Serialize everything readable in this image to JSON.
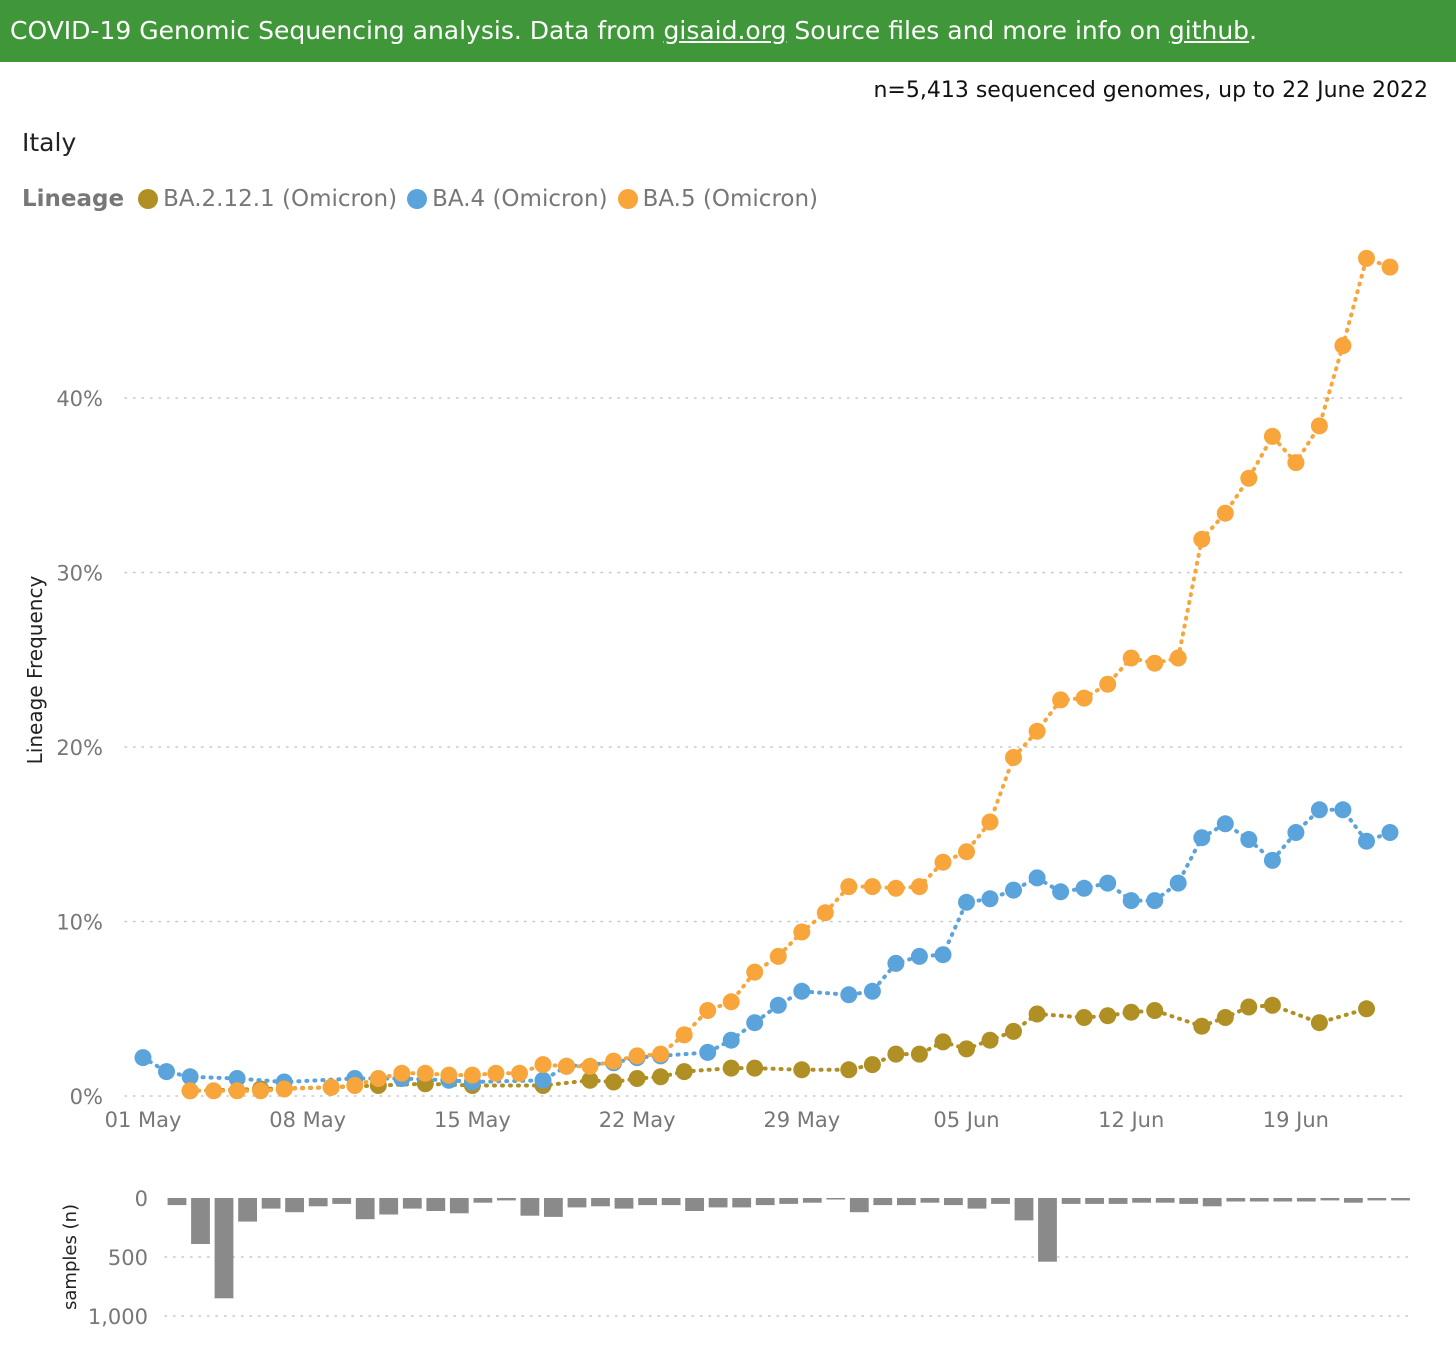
{
  "header": {
    "text_before": "COVID-19 Genomic Sequencing analysis. Data from ",
    "link1": "gisaid.org",
    "text_middle": " Source files and more info on ",
    "link2": "github",
    "text_after": "."
  },
  "subtitle": "n=5,413 sequenced genomes, up to 22 June 2022",
  "country": "Italy",
  "legend_title": "Lineage",
  "colors": {
    "ba2121": "#b08f24",
    "ba4": "#5ba3db",
    "ba5": "#f8a53b",
    "bars": "#8a8a8a",
    "header": "#3f973a"
  },
  "chart_data": [
    {
      "type": "line",
      "ylabel": "Lineage Frequency",
      "ylim": [
        0,
        48
      ],
      "yticks": [
        {
          "value": 0,
          "label": "0%"
        },
        {
          "value": 10,
          "label": "10%"
        },
        {
          "value": 20,
          "label": "20%"
        },
        {
          "value": 30,
          "label": "30%"
        },
        {
          "value": 40,
          "label": "40%"
        }
      ],
      "xlim": [
        "2022-05-01",
        "2022-06-23"
      ],
      "xticks": [
        {
          "date": "2022-05-01",
          "label": "01 May"
        },
        {
          "date": "2022-05-08",
          "label": "08 May"
        },
        {
          "date": "2022-05-15",
          "label": "15 May"
        },
        {
          "date": "2022-05-22",
          "label": "22 May"
        },
        {
          "date": "2022-05-29",
          "label": "29 May"
        },
        {
          "date": "2022-06-05",
          "label": "05 Jun"
        },
        {
          "date": "2022-06-12",
          "label": "12 Jun"
        },
        {
          "date": "2022-06-19",
          "label": "19 Jun"
        }
      ],
      "grid": "horizontal-dotted",
      "legend_position": "top-left",
      "series": [
        {
          "name": "BA.2.12.1 (Omicron)",
          "color": "#b08f24",
          "points": [
            [
              "2022-05-03",
              0.3
            ],
            [
              "2022-05-06",
              0.4
            ],
            [
              "2022-05-09",
              0.5
            ],
            [
              "2022-05-11",
              0.6
            ],
            [
              "2022-05-13",
              0.7
            ],
            [
              "2022-05-15",
              0.6
            ],
            [
              "2022-05-18",
              0.6
            ],
            [
              "2022-05-20",
              0.9
            ],
            [
              "2022-05-21",
              0.8
            ],
            [
              "2022-05-22",
              1.0
            ],
            [
              "2022-05-23",
              1.1
            ],
            [
              "2022-05-24",
              1.4
            ],
            [
              "2022-05-26",
              1.6
            ],
            [
              "2022-05-27",
              1.6
            ],
            [
              "2022-05-29",
              1.5
            ],
            [
              "2022-05-31",
              1.5
            ],
            [
              "2022-06-01",
              1.8
            ],
            [
              "2022-06-02",
              2.4
            ],
            [
              "2022-06-03",
              2.4
            ],
            [
              "2022-06-04",
              3.1
            ],
            [
              "2022-06-05",
              2.7
            ],
            [
              "2022-06-06",
              3.2
            ],
            [
              "2022-06-07",
              3.7
            ],
            [
              "2022-06-08",
              4.7
            ],
            [
              "2022-06-10",
              4.5
            ],
            [
              "2022-06-11",
              4.6
            ],
            [
              "2022-06-12",
              4.8
            ],
            [
              "2022-06-13",
              4.9
            ],
            [
              "2022-06-15",
              4.0
            ],
            [
              "2022-06-16",
              4.5
            ],
            [
              "2022-06-17",
              5.1
            ],
            [
              "2022-06-18",
              5.2
            ],
            [
              "2022-06-20",
              4.2
            ],
            [
              "2022-06-22",
              5.0
            ]
          ]
        },
        {
          "name": "BA.4 (Omicron)",
          "color": "#5ba3db",
          "points": [
            [
              "2022-05-01",
              2.2
            ],
            [
              "2022-05-02",
              1.4
            ],
            [
              "2022-05-03",
              1.1
            ],
            [
              "2022-05-05",
              1.0
            ],
            [
              "2022-05-07",
              0.8
            ],
            [
              "2022-05-10",
              1.0
            ],
            [
              "2022-05-12",
              1.0
            ],
            [
              "2022-05-14",
              0.9
            ],
            [
              "2022-05-15",
              0.8
            ],
            [
              "2022-05-18",
              0.9
            ],
            [
              "2022-05-19",
              1.7
            ],
            [
              "2022-05-21",
              1.9
            ],
            [
              "2022-05-22",
              2.2
            ],
            [
              "2022-05-23",
              2.3
            ],
            [
              "2022-05-25",
              2.5
            ],
            [
              "2022-05-26",
              3.2
            ],
            [
              "2022-05-27",
              4.2
            ],
            [
              "2022-05-28",
              5.2
            ],
            [
              "2022-05-29",
              6.0
            ],
            [
              "2022-05-31",
              5.8
            ],
            [
              "2022-06-01",
              6.0
            ],
            [
              "2022-06-02",
              7.6
            ],
            [
              "2022-06-03",
              8.0
            ],
            [
              "2022-06-04",
              8.1
            ],
            [
              "2022-06-05",
              11.1
            ],
            [
              "2022-06-06",
              11.3
            ],
            [
              "2022-06-07",
              11.8
            ],
            [
              "2022-06-08",
              12.5
            ],
            [
              "2022-06-09",
              11.7
            ],
            [
              "2022-06-10",
              11.9
            ],
            [
              "2022-06-11",
              12.2
            ],
            [
              "2022-06-12",
              11.2
            ],
            [
              "2022-06-13",
              11.2
            ],
            [
              "2022-06-14",
              12.2
            ],
            [
              "2022-06-15",
              14.8
            ],
            [
              "2022-06-16",
              15.6
            ],
            [
              "2022-06-17",
              14.7
            ],
            [
              "2022-06-18",
              13.5
            ],
            [
              "2022-06-19",
              15.1
            ],
            [
              "2022-06-20",
              16.4
            ],
            [
              "2022-06-21",
              16.4
            ],
            [
              "2022-06-22",
              14.6
            ],
            [
              "2022-06-23",
              15.1
            ]
          ]
        },
        {
          "name": "BA.5 (Omicron)",
          "color": "#f8a53b",
          "points": [
            [
              "2022-05-03",
              0.3
            ],
            [
              "2022-05-04",
              0.3
            ],
            [
              "2022-05-05",
              0.3
            ],
            [
              "2022-05-06",
              0.3
            ],
            [
              "2022-05-07",
              0.4
            ],
            [
              "2022-05-09",
              0.5
            ],
            [
              "2022-05-10",
              0.6
            ],
            [
              "2022-05-11",
              1.0
            ],
            [
              "2022-05-12",
              1.3
            ],
            [
              "2022-05-13",
              1.3
            ],
            [
              "2022-05-14",
              1.2
            ],
            [
              "2022-05-15",
              1.2
            ],
            [
              "2022-05-16",
              1.3
            ],
            [
              "2022-05-17",
              1.3
            ],
            [
              "2022-05-18",
              1.8
            ],
            [
              "2022-05-19",
              1.7
            ],
            [
              "2022-05-20",
              1.7
            ],
            [
              "2022-05-21",
              2.0
            ],
            [
              "2022-05-22",
              2.3
            ],
            [
              "2022-05-23",
              2.4
            ],
            [
              "2022-05-24",
              3.5
            ],
            [
              "2022-05-25",
              4.9
            ],
            [
              "2022-05-26",
              5.4
            ],
            [
              "2022-05-27",
              7.1
            ],
            [
              "2022-05-28",
              8.0
            ],
            [
              "2022-05-29",
              9.4
            ],
            [
              "2022-05-30",
              10.5
            ],
            [
              "2022-05-31",
              12.0
            ],
            [
              "2022-06-01",
              12.0
            ],
            [
              "2022-06-02",
              11.9
            ],
            [
              "2022-06-03",
              12.0
            ],
            [
              "2022-06-04",
              13.4
            ],
            [
              "2022-06-05",
              14.0
            ],
            [
              "2022-06-06",
              15.7
            ],
            [
              "2022-06-07",
              19.4
            ],
            [
              "2022-06-08",
              20.9
            ],
            [
              "2022-06-09",
              22.7
            ],
            [
              "2022-06-10",
              22.8
            ],
            [
              "2022-06-11",
              23.6
            ],
            [
              "2022-06-12",
              25.1
            ],
            [
              "2022-06-13",
              24.8
            ],
            [
              "2022-06-14",
              25.1
            ],
            [
              "2022-06-15",
              31.9
            ],
            [
              "2022-06-16",
              33.4
            ],
            [
              "2022-06-17",
              35.4
            ],
            [
              "2022-06-18",
              37.8
            ],
            [
              "2022-06-19",
              36.3
            ],
            [
              "2022-06-20",
              38.4
            ],
            [
              "2022-06-21",
              43.0
            ],
            [
              "2022-06-22",
              48.0
            ],
            [
              "2022-06-23",
              47.5
            ]
          ]
        }
      ]
    },
    {
      "type": "bar",
      "ylabel": "samples (n)",
      "ylim": [
        0,
        1000
      ],
      "inverted": true,
      "yticks": [
        {
          "value": 0,
          "label": "0"
        },
        {
          "value": 500,
          "label": "500"
        },
        {
          "value": 1000,
          "label": "1,000"
        }
      ],
      "grid": "horizontal-dotted",
      "dates_start": "2022-05-01",
      "values": [
        60,
        390,
        850,
        200,
        90,
        120,
        70,
        50,
        180,
        140,
        90,
        110,
        130,
        40,
        20,
        150,
        160,
        80,
        70,
        90,
        60,
        60,
        110,
        80,
        80,
        60,
        50,
        40,
        10,
        120,
        60,
        60,
        40,
        60,
        90,
        50,
        190,
        540,
        50,
        50,
        50,
        40,
        40,
        50,
        70,
        30,
        30,
        30,
        30,
        20,
        40,
        20,
        20
      ]
    }
  ]
}
